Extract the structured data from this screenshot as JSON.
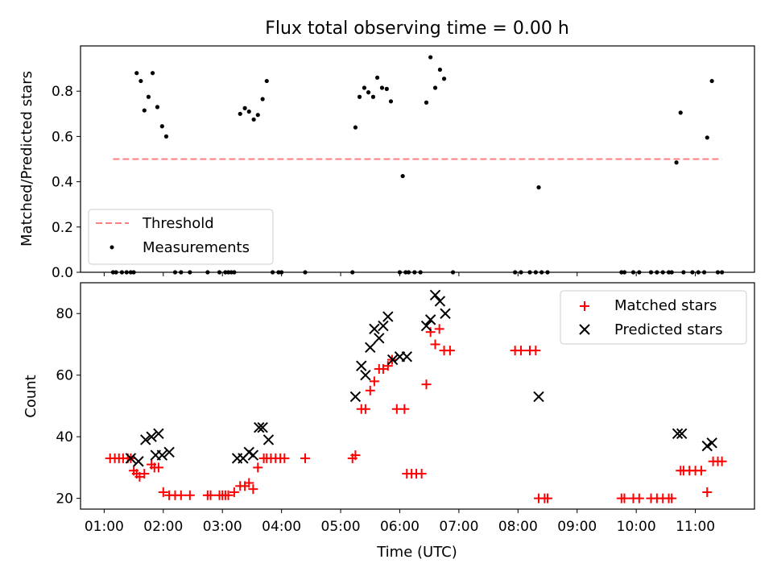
{
  "title": "Flux total observing time = 0.00 h",
  "xlabel": "Time (UTC)",
  "colors": {
    "threshold": "#ff7f7f",
    "measurements": "#000000",
    "matched": "#ff0000",
    "predicted": "#000000"
  },
  "chart_data": [
    {
      "type": "scatter",
      "title": "Flux total observing time = 0.00 h",
      "xlabel": "",
      "ylabel": "Matched/Predicted stars",
      "xlim": [
        0.6,
        12.0
      ],
      "ylim": [
        0,
        1.0
      ],
      "yticks": [
        0.0,
        0.2,
        0.4,
        0.6,
        0.8
      ],
      "grid": false,
      "legend_position": "lower-left",
      "legend": [
        "Threshold",
        "Measurements"
      ],
      "threshold": {
        "name": "Threshold",
        "y": 0.5,
        "x_range": [
          1.15,
          11.45
        ],
        "style": "dashed"
      },
      "measurements": {
        "name": "Measurements",
        "points": [
          [
            1.15,
            0
          ],
          [
            1.2,
            0
          ],
          [
            1.3,
            0
          ],
          [
            1.38,
            0
          ],
          [
            1.45,
            0
          ],
          [
            1.5,
            0
          ],
          [
            1.55,
            0.88
          ],
          [
            1.62,
            0.845
          ],
          [
            1.68,
            0.715
          ],
          [
            1.75,
            0.775
          ],
          [
            1.82,
            0.88
          ],
          [
            1.9,
            0.73
          ],
          [
            1.98,
            0.645
          ],
          [
            2.05,
            0.6
          ],
          [
            2.2,
            0
          ],
          [
            2.3,
            0
          ],
          [
            2.45,
            0
          ],
          [
            2.75,
            0
          ],
          [
            2.95,
            0
          ],
          [
            3.05,
            0
          ],
          [
            3.1,
            0
          ],
          [
            3.15,
            0
          ],
          [
            3.2,
            0
          ],
          [
            3.3,
            0.7
          ],
          [
            3.38,
            0.725
          ],
          [
            3.45,
            0.71
          ],
          [
            3.53,
            0.675
          ],
          [
            3.6,
            0.695
          ],
          [
            3.68,
            0.765
          ],
          [
            3.75,
            0.845
          ],
          [
            3.85,
            0
          ],
          [
            3.95,
            0
          ],
          [
            4.0,
            0
          ],
          [
            4.4,
            0
          ],
          [
            5.2,
            0
          ],
          [
            5.25,
            0.64
          ],
          [
            5.32,
            0.775
          ],
          [
            5.4,
            0.815
          ],
          [
            5.47,
            0.795
          ],
          [
            5.55,
            0.775
          ],
          [
            5.62,
            0.86
          ],
          [
            5.7,
            0.815
          ],
          [
            5.78,
            0.81
          ],
          [
            5.85,
            0.755
          ],
          [
            6.0,
            0
          ],
          [
            6.05,
            0.425
          ],
          [
            6.1,
            0
          ],
          [
            6.15,
            0
          ],
          [
            6.25,
            0
          ],
          [
            6.35,
            0
          ],
          [
            6.45,
            0.75
          ],
          [
            6.52,
            0.95
          ],
          [
            6.6,
            0.815
          ],
          [
            6.68,
            0.895
          ],
          [
            6.75,
            0.855
          ],
          [
            6.9,
            0
          ],
          [
            7.95,
            0
          ],
          [
            8.05,
            0
          ],
          [
            8.2,
            0
          ],
          [
            8.3,
            0
          ],
          [
            8.35,
            0.375
          ],
          [
            8.4,
            0
          ],
          [
            8.5,
            0
          ],
          [
            9.75,
            0
          ],
          [
            9.8,
            0
          ],
          [
            9.95,
            0
          ],
          [
            10.05,
            0
          ],
          [
            10.25,
            0
          ],
          [
            10.35,
            0
          ],
          [
            10.45,
            0
          ],
          [
            10.55,
            0
          ],
          [
            10.6,
            0
          ],
          [
            10.68,
            0.485
          ],
          [
            10.75,
            0.705
          ],
          [
            10.8,
            0
          ],
          [
            10.95,
            0
          ],
          [
            11.05,
            0
          ],
          [
            11.15,
            0
          ],
          [
            11.2,
            0.595
          ],
          [
            11.28,
            0.845
          ],
          [
            11.38,
            0
          ],
          [
            11.45,
            0
          ]
        ]
      }
    },
    {
      "type": "scatter",
      "title": "",
      "xlabel": "Time (UTC)",
      "ylabel": "Count",
      "xlim": [
        0.6,
        12.0
      ],
      "ylim": [
        16.5,
        90
      ],
      "yticks": [
        20,
        40,
        60,
        80
      ],
      "xticks": [
        1,
        2,
        3,
        4,
        5,
        6,
        7,
        8,
        9,
        10,
        11
      ],
      "xticklabels": [
        "01:00",
        "02:00",
        "03:00",
        "04:00",
        "05:00",
        "06:00",
        "07:00",
        "08:00",
        "09:00",
        "10:00",
        "11:00"
      ],
      "grid": false,
      "legend_position": "top-right",
      "legend": [
        "Matched stars",
        "Predicted stars"
      ],
      "series": [
        {
          "name": "Matched stars",
          "marker": "+",
          "points": [
            [
              1.1,
              33
            ],
            [
              1.18,
              33
            ],
            [
              1.25,
              33
            ],
            [
              1.32,
              33
            ],
            [
              1.4,
              33
            ],
            [
              1.45,
              33
            ],
            [
              1.5,
              29
            ],
            [
              1.55,
              28
            ],
            [
              1.6,
              27
            ],
            [
              1.68,
              28
            ],
            [
              1.8,
              31
            ],
            [
              1.85,
              30
            ],
            [
              1.92,
              30
            ],
            [
              2.0,
              22
            ],
            [
              2.1,
              21
            ],
            [
              2.2,
              21
            ],
            [
              2.3,
              21
            ],
            [
              2.45,
              21
            ],
            [
              2.75,
              21
            ],
            [
              2.8,
              21
            ],
            [
              2.95,
              21
            ],
            [
              3.0,
              21
            ],
            [
              3.05,
              21
            ],
            [
              3.1,
              21
            ],
            [
              3.2,
              22
            ],
            [
              3.3,
              24
            ],
            [
              3.38,
              24
            ],
            [
              3.45,
              25
            ],
            [
              3.52,
              23
            ],
            [
              3.6,
              30
            ],
            [
              3.7,
              33
            ],
            [
              3.75,
              33
            ],
            [
              3.82,
              33
            ],
            [
              3.9,
              33
            ],
            [
              3.98,
              33
            ],
            [
              4.05,
              33
            ],
            [
              4.4,
              33
            ],
            [
              5.2,
              33
            ],
            [
              5.25,
              34
            ],
            [
              5.35,
              49
            ],
            [
              5.42,
              49
            ],
            [
              5.5,
              55
            ],
            [
              5.57,
              58
            ],
            [
              5.65,
              62
            ],
            [
              5.72,
              62
            ],
            [
              5.8,
              63
            ],
            [
              5.87,
              65
            ],
            [
              5.95,
              49
            ],
            [
              6.08,
              49
            ],
            [
              6.12,
              28
            ],
            [
              6.2,
              28
            ],
            [
              6.28,
              28
            ],
            [
              6.37,
              28
            ],
            [
              6.45,
              57
            ],
            [
              6.52,
              74
            ],
            [
              6.6,
              70
            ],
            [
              6.67,
              75
            ],
            [
              6.75,
              68
            ],
            [
              6.85,
              68
            ],
            [
              7.95,
              68
            ],
            [
              8.05,
              68
            ],
            [
              8.2,
              68
            ],
            [
              8.3,
              68
            ],
            [
              8.35,
              20
            ],
            [
              8.45,
              20
            ],
            [
              8.5,
              20
            ],
            [
              9.75,
              20
            ],
            [
              9.8,
              20
            ],
            [
              9.95,
              20
            ],
            [
              10.05,
              20
            ],
            [
              10.25,
              20
            ],
            [
              10.35,
              20
            ],
            [
              10.45,
              20
            ],
            [
              10.55,
              20
            ],
            [
              10.6,
              20
            ],
            [
              10.75,
              29
            ],
            [
              10.8,
              29
            ],
            [
              10.9,
              29
            ],
            [
              11.0,
              29
            ],
            [
              11.1,
              29
            ],
            [
              11.2,
              22
            ],
            [
              11.3,
              32
            ],
            [
              11.38,
              32
            ],
            [
              11.45,
              32
            ]
          ]
        },
        {
          "name": "Predicted stars",
          "marker": "x",
          "points": [
            [
              1.45,
              33
            ],
            [
              1.58,
              32
            ],
            [
              1.7,
              39
            ],
            [
              1.8,
              40
            ],
            [
              1.87,
              34
            ],
            [
              1.92,
              41
            ],
            [
              1.98,
              34
            ],
            [
              2.1,
              35
            ],
            [
              3.25,
              33
            ],
            [
              3.35,
              33
            ],
            [
              3.45,
              35
            ],
            [
              3.52,
              34
            ],
            [
              3.62,
              43
            ],
            [
              3.68,
              43
            ],
            [
              3.78,
              39
            ],
            [
              5.25,
              53
            ],
            [
              5.35,
              63
            ],
            [
              5.42,
              60
            ],
            [
              5.5,
              69
            ],
            [
              5.57,
              75
            ],
            [
              5.65,
              72
            ],
            [
              5.72,
              76
            ],
            [
              5.8,
              79
            ],
            [
              5.88,
              65
            ],
            [
              6.0,
              66
            ],
            [
              6.12,
              66
            ],
            [
              6.45,
              76
            ],
            [
              6.52,
              78
            ],
            [
              6.6,
              86
            ],
            [
              6.68,
              84
            ],
            [
              6.77,
              80
            ],
            [
              8.35,
              53
            ],
            [
              10.7,
              41
            ],
            [
              10.77,
              41
            ],
            [
              11.2,
              37
            ],
            [
              11.28,
              38
            ]
          ]
        }
      ]
    }
  ]
}
